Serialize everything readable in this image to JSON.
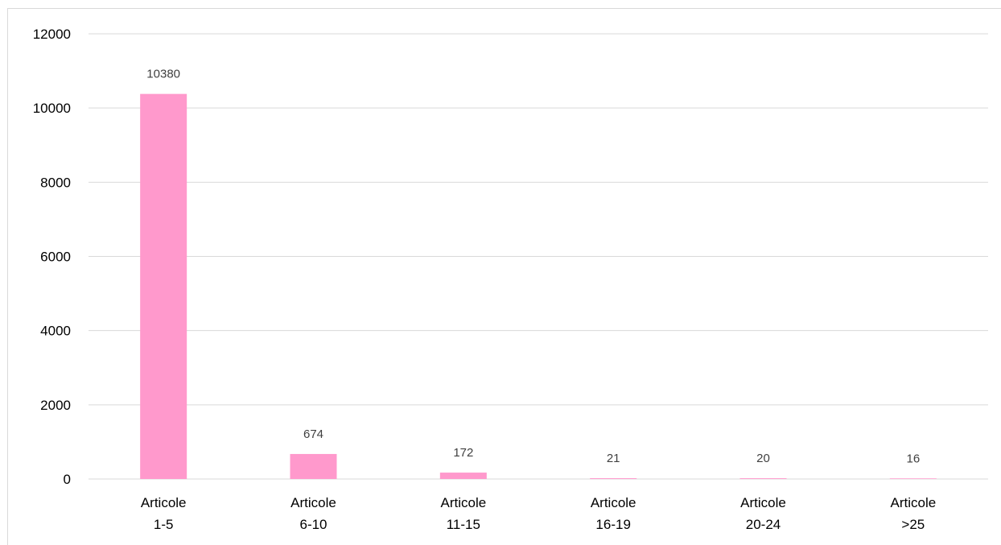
{
  "colors": {
    "bar": "#ff99cc",
    "grid": "#d9d9d9",
    "axis_text": "#000000",
    "data_label": "#404040",
    "title": "#9b1fa0"
  },
  "chart_data": {
    "type": "bar",
    "title": "",
    "xlabel": "",
    "ylabel": "",
    "categories": [
      [
        "Articole",
        "1-5"
      ],
      [
        "Articole",
        "6-10"
      ],
      [
        "Articole",
        "11-15"
      ],
      [
        "Articole",
        "16-19"
      ],
      [
        "Articole",
        "20-24"
      ],
      [
        "Articole",
        ">25"
      ]
    ],
    "values": [
      10380,
      674,
      172,
      21,
      20,
      16
    ],
    "data_labels": [
      "10380",
      "674",
      "172",
      "21",
      "20",
      "16"
    ],
    "ylim": [
      0,
      12000
    ],
    "yticks": [
      0,
      2000,
      4000,
      6000,
      8000,
      10000,
      12000
    ],
    "ytick_labels": [
      "0",
      "2000",
      "4000",
      "6000",
      "8000",
      "10000",
      "12000"
    ],
    "grid": true,
    "legend": "none"
  }
}
